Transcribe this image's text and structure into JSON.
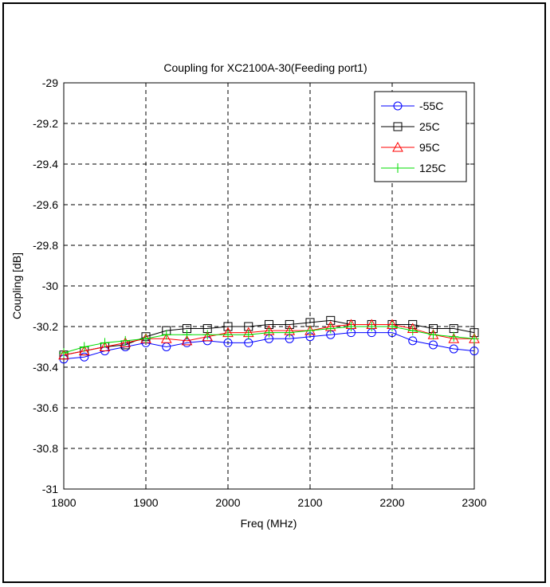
{
  "chart_data": {
    "type": "line",
    "title": "Coupling for XC2100A-30(Feeding port1)",
    "xlabel": "Freq (MHz)",
    "ylabel": "Coupling [dB]",
    "xlim": [
      1800,
      2300
    ],
    "ylim": [
      -31,
      -29
    ],
    "xticks": [
      1800,
      1900,
      2000,
      2100,
      2200,
      2300
    ],
    "yticks": [
      -29,
      -29.2,
      -29.4,
      -29.6,
      -29.8,
      -30,
      -30.2,
      -30.4,
      -30.6,
      -30.8,
      -31
    ],
    "ytick_labels": [
      "-29",
      "-29.2",
      "-29.4",
      "-29.6",
      "-29.8",
      "-30",
      "-30.2",
      "-30.4",
      "-30.6",
      "-30.8",
      "-31"
    ],
    "grid": true,
    "legend_position": "top-right",
    "x": [
      1800,
      1825,
      1850,
      1875,
      1900,
      1925,
      1950,
      1975,
      2000,
      2025,
      2050,
      2075,
      2100,
      2125,
      2150,
      2175,
      2200,
      2225,
      2250,
      2275,
      2300
    ],
    "series": [
      {
        "name": "-55C",
        "color": "#0000ff",
        "marker": "circle",
        "values": [
          -30.36,
          -30.35,
          -30.32,
          -30.3,
          -30.28,
          -30.3,
          -30.28,
          -30.27,
          -30.28,
          -30.28,
          -30.26,
          -30.26,
          -30.25,
          -30.24,
          -30.23,
          -30.23,
          -30.23,
          -30.27,
          -30.29,
          -30.31,
          -30.32
        ]
      },
      {
        "name": "25C",
        "color": "#000000",
        "marker": "square",
        "values": [
          -30.34,
          -30.32,
          -30.3,
          -30.29,
          -30.25,
          -30.22,
          -30.21,
          -30.21,
          -30.2,
          -30.2,
          -30.19,
          -30.19,
          -30.18,
          -30.17,
          -30.19,
          -30.19,
          -30.19,
          -30.19,
          -30.21,
          -30.21,
          -30.23
        ]
      },
      {
        "name": "95C",
        "color": "#ff0000",
        "marker": "triangle",
        "values": [
          -30.34,
          -30.32,
          -30.3,
          -30.28,
          -30.26,
          -30.26,
          -30.27,
          -30.25,
          -30.23,
          -30.23,
          -30.22,
          -30.22,
          -30.22,
          -30.2,
          -30.19,
          -30.19,
          -30.19,
          -30.21,
          -30.24,
          -30.26,
          -30.26
        ]
      },
      {
        "name": "125C",
        "color": "#00dd00",
        "marker": "plus",
        "values": [
          -30.33,
          -30.3,
          -30.28,
          -30.27,
          -30.26,
          -30.24,
          -30.24,
          -30.24,
          -30.24,
          -30.24,
          -30.23,
          -30.23,
          -30.22,
          -30.21,
          -30.2,
          -30.2,
          -30.2,
          -30.22,
          -30.24,
          -30.25,
          -30.26
        ]
      }
    ]
  }
}
